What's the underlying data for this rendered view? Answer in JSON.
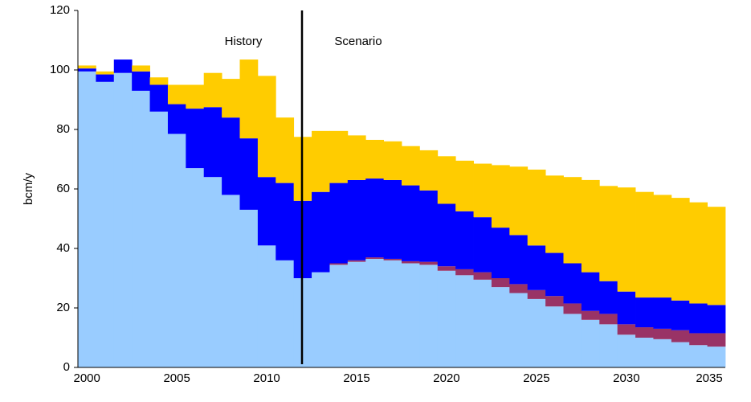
{
  "chart_data": {
    "type": "bar",
    "stacked": true,
    "y_label": "bcm/y",
    "annotations": [
      "History",
      "Scenario"
    ],
    "categories": [
      "2000",
      null,
      null,
      null,
      null,
      "2005",
      null,
      null,
      null,
      null,
      "2010",
      null,
      null,
      null,
      null,
      "2015",
      null,
      null,
      null,
      null,
      "2020",
      null,
      null,
      null,
      null,
      "2025",
      null,
      null,
      null,
      null,
      "2030",
      null,
      null,
      null,
      null,
      "2035"
    ],
    "series": [
      {
        "color": "#99ccff",
        "values": [
          99.5,
          96,
          99,
          93,
          86,
          78.5,
          67,
          64,
          58,
          53,
          41,
          36,
          30,
          32,
          34.5,
          35.5,
          36.5,
          36,
          35,
          34.5,
          32.5,
          31,
          29.5,
          27,
          25,
          23,
          20.5,
          18,
          16,
          14.5,
          11,
          10,
          9.5,
          8.5,
          7.5,
          7
        ]
      },
      {
        "color": "#993366",
        "values": [
          0,
          0,
          0,
          0,
          0,
          0,
          0,
          0,
          0,
          0,
          0,
          0,
          0,
          0,
          0.5,
          0.5,
          0.5,
          0.5,
          0.7,
          1,
          1.5,
          2,
          2.5,
          3,
          3,
          3,
          3.5,
          3.5,
          3,
          3.5,
          3.5,
          3.5,
          3.5,
          4,
          4,
          4.5
        ]
      },
      {
        "color": "#0000ff",
        "values": [
          1,
          2.5,
          4.5,
          6.5,
          9,
          10,
          20,
          23.5,
          26,
          24,
          23,
          26,
          26,
          27,
          27,
          27,
          26.5,
          26.5,
          25.5,
          24,
          21,
          19.5,
          18.5,
          17,
          16.5,
          15,
          14.5,
          13.5,
          13,
          11,
          11,
          10,
          10.5,
          10,
          10,
          9.5
        ]
      },
      {
        "color": "#ffcc00",
        "values": [
          1,
          1,
          0,
          2,
          2.5,
          6.5,
          8,
          11.5,
          13,
          26.5,
          34,
          22,
          21.5,
          20.5,
          17.5,
          15,
          13,
          13,
          13.2,
          13.5,
          16,
          17,
          18,
          21,
          23,
          25.5,
          26,
          29,
          31,
          32,
          35,
          35.5,
          34.5,
          34.5,
          34,
          33
        ]
      }
    ],
    "ylim": [
      0,
      120
    ],
    "yticks": [
      0,
      20,
      40,
      60,
      80,
      100,
      120
    ],
    "grid": false
  }
}
